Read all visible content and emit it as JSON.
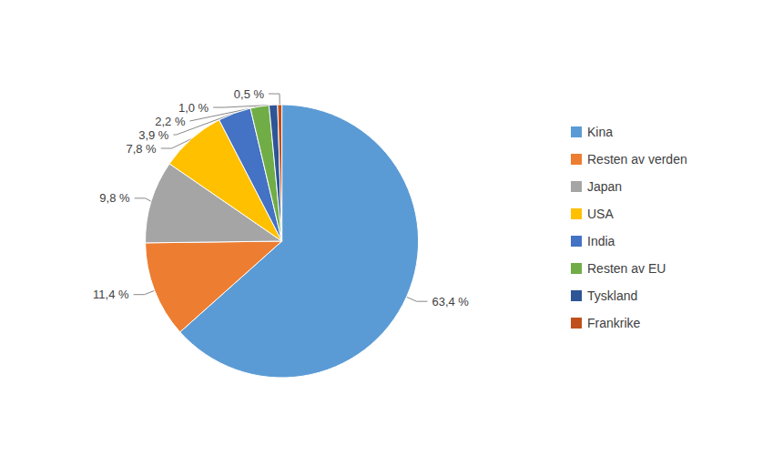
{
  "chart_data": {
    "type": "pie",
    "categories": [
      "Kina",
      "Resten av verden",
      "Japan",
      "USA",
      "India",
      "Resten av EU",
      "Tyskland",
      "Frankrike"
    ],
    "values": [
      63.4,
      11.4,
      9.8,
      7.8,
      3.9,
      2.2,
      1.0,
      0.5
    ],
    "value_labels": [
      "63,4 %",
      "11,4 %",
      "9,8 %",
      "7,8 %",
      "3,9 %",
      "2,2 %",
      "1,0 %",
      "0,5 %"
    ],
    "colors": [
      "#5B9BD5",
      "#ED7D31",
      "#A5A5A5",
      "#FFC000",
      "#4472C4",
      "#70AD47",
      "#2E5596",
      "#BF4F1B"
    ],
    "data_labels": true,
    "legend": "right"
  }
}
